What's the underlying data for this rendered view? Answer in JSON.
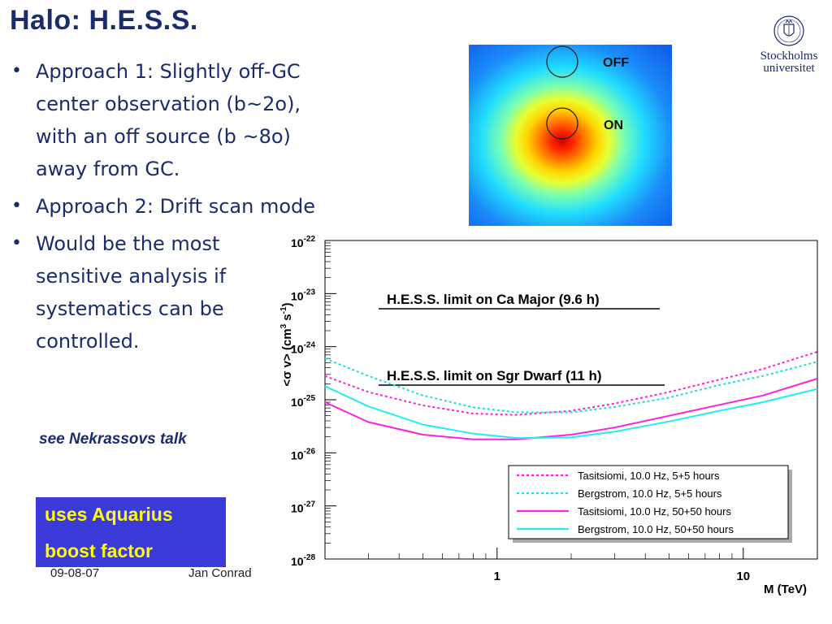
{
  "slide": {
    "title": "Halo: H.E.S.S.",
    "bullets": [
      "Approach 1: Slightly off-GC center observation (b~2o), with an off source (b ~8o)   away from GC.",
      "Approach 2: Drift scan mode",
      "Would be the most sensitive analysis if systematics can be controlled."
    ],
    "note": "see Nekrassovs talk",
    "boost_box": {
      "line1": "uses Aquarius",
      "line2": "boost factor",
      "bg_color": "#3a3ad8",
      "text_color": "#ffff00"
    },
    "footer": {
      "date": "09-08-07",
      "author": "Jan Conrad"
    },
    "logo": {
      "icon": "university-crest-icon",
      "name_line1": "Stockholms",
      "name_line2": "universitet"
    }
  },
  "heatmap": {
    "label_off": "OFF",
    "label_on": "ON"
  },
  "chart_data": {
    "type": "line",
    "title": "",
    "xlabel": "M (TeV)",
    "ylabel": "<σ v> (cm3 s-1)",
    "x_scale": "log",
    "y_scale": "log",
    "xlim": [
      0.2,
      20
    ],
    "ylim": [
      1e-28,
      1e-22
    ],
    "x_tick_labels": [
      {
        "value": 1,
        "label": "1"
      },
      {
        "value": 10,
        "label": "10"
      }
    ],
    "y_tick_labels": [
      {
        "value": 1e-22,
        "base": "10",
        "exp": "-22"
      },
      {
        "value": 1e-23,
        "base": "10",
        "exp": "-23"
      },
      {
        "value": 1e-24,
        "base": "10",
        "exp": "-24"
      },
      {
        "value": 1e-25,
        "base": "10",
        "exp": "-25"
      },
      {
        "value": 1e-26,
        "base": "10",
        "exp": "-26"
      },
      {
        "value": 1e-27,
        "base": "10",
        "exp": "-27"
      },
      {
        "value": 1e-28,
        "base": "10",
        "exp": "-28"
      }
    ],
    "annotations": [
      "H.E.S.S. limit on Ca Major (9.6 h)",
      "H.E.S.S. limit on Sgr Dwarf (11 h)"
    ],
    "legend_position": "bottom-right",
    "series": [
      {
        "name": "Tasitsiomi, 10.0 Hz, 5+5 hours",
        "color": "#ff22dd",
        "dashed": true,
        "x": [
          0.2,
          0.3,
          0.5,
          0.8,
          1.2,
          2,
          3,
          5,
          8,
          12,
          20
        ],
        "y": [
          2.8e-25,
          1.4e-25,
          7.8e-26,
          5.5e-26,
          5.2e-26,
          6.2e-26,
          8.5e-26,
          1.4e-25,
          2.4e-25,
          3.8e-25,
          8e-25
        ]
      },
      {
        "name": "Bergstrom, 10.0 Hz, 5+5 hours",
        "color": "#22dddd",
        "dashed": true,
        "x": [
          0.2,
          0.3,
          0.5,
          0.8,
          1.2,
          2,
          3,
          5,
          8,
          12,
          20
        ],
        "y": [
          6e-25,
          2.8e-25,
          1.2e-25,
          7.2e-26,
          5.8e-26,
          5.8e-26,
          7.3e-26,
          1.1e-25,
          1.9e-25,
          2.8e-25,
          5.2e-25
        ]
      },
      {
        "name": "Tasitsiomi, 10.0 Hz, 50+50 hours",
        "color": "#ff22dd",
        "dashed": false,
        "x": [
          0.2,
          0.3,
          0.5,
          0.8,
          1.2,
          2,
          3,
          5,
          8,
          12,
          20
        ],
        "y": [
          9e-26,
          3.8e-26,
          2.2e-26,
          1.8e-26,
          1.8e-26,
          2.2e-26,
          3e-26,
          5e-26,
          8e-26,
          1.2e-25,
          2.5e-25
        ]
      },
      {
        "name": "Bergstrom, 10.0 Hz, 50+50 hours",
        "color": "#22eeee",
        "dashed": false,
        "x": [
          0.2,
          0.3,
          0.5,
          0.8,
          1.2,
          2,
          3,
          5,
          8,
          12,
          20
        ],
        "y": [
          1.8e-25,
          7.5e-26,
          3.4e-26,
          2.3e-26,
          1.9e-26,
          1.95e-26,
          2.5e-26,
          3.9e-26,
          6.2e-26,
          9e-26,
          1.6e-25
        ]
      }
    ]
  }
}
